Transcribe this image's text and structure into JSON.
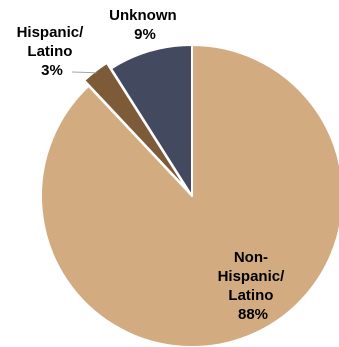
{
  "chart_data": {
    "type": "pie",
    "start": "12 o'clock",
    "direction": "clockwise",
    "slices": [
      {
        "label_lines": [
          "Non-",
          "Hispanic/",
          "Latino"
        ],
        "value": 88,
        "value_label": "88%",
        "color": "#D2AB80"
      },
      {
        "label_lines": [
          "Hispanic/",
          "Latino"
        ],
        "value": 3,
        "value_label": "3%",
        "color": "#7D5A38"
      },
      {
        "label_lines": [
          "Unknown"
        ],
        "value": 9,
        "value_label": "9%",
        "color": "#434A60"
      }
    ],
    "label_color": "#000000",
    "slice_border_color": "#ffffff"
  }
}
